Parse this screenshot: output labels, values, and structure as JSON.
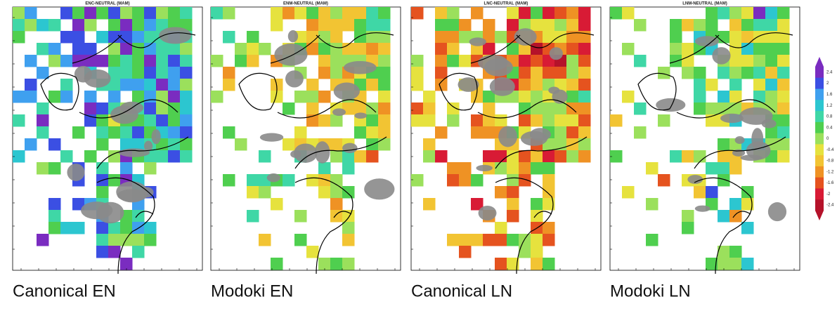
{
  "panels": [
    {
      "title": "ENC-NEUTRAL (MAM)",
      "caption": "Canonical EN"
    },
    {
      "title": "ENM-NEUTRAL (MAM)",
      "caption": "Modoki EN"
    },
    {
      "title": "LNC-NEUTRAL (MAM)",
      "caption": "Canonical LN"
    },
    {
      "title": "LNM-NEUTRAL (MAM)",
      "caption": "Modoki LN"
    }
  ],
  "colorbar": {
    "labels": [
      2.4,
      2,
      1.6,
      1.2,
      0.8,
      0.4,
      0,
      -0.4,
      -0.8,
      -1.2,
      -1.6,
      -2,
      -2.4
    ]
  }
}
